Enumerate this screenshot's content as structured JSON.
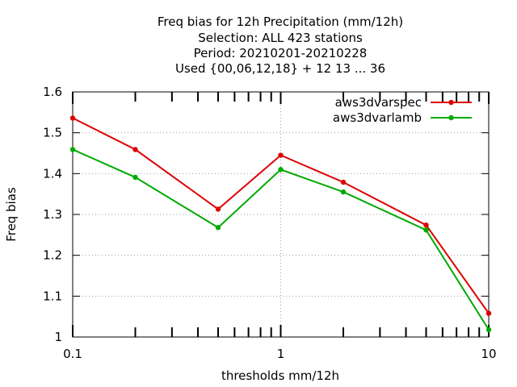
{
  "chart_data": {
    "type": "line",
    "title_lines": [
      "Freq bias  for 12h Precipitation (mm/12h)",
      "Selection: ALL    423 stations",
      "Period: 20210201-20210228",
      "Used {00,06,12,18} + 12 13 ... 36"
    ],
    "xlabel": "thresholds mm/12h",
    "ylabel": "Freq bias",
    "x_scale": "log",
    "xlim": [
      0.1,
      10
    ],
    "ylim": [
      1.0,
      1.6
    ],
    "x_ticks": [
      0.1,
      1,
      10
    ],
    "x_tick_labels": [
      "0.1",
      "1",
      "10"
    ],
    "y_ticks": [
      1.0,
      1.1,
      1.2,
      1.3,
      1.4,
      1.5,
      1.6
    ],
    "y_tick_labels": [
      "1",
      "1.1",
      "1.2",
      "1.3",
      "1.4",
      "1.5",
      "1.6"
    ],
    "grid": true,
    "legend_position": "top-right",
    "x": [
      0.1,
      0.2,
      0.5,
      1,
      2,
      5,
      10
    ],
    "series": [
      {
        "name": "aws3dvarspec",
        "color": "#dd0000",
        "values": [
          1.536,
          1.459,
          1.313,
          1.445,
          1.379,
          1.274,
          1.058
        ]
      },
      {
        "name": "aws3dvarlamb",
        "color": "#00aa00",
        "values": [
          1.459,
          1.391,
          1.268,
          1.41,
          1.355,
          1.262,
          1.018
        ]
      }
    ]
  }
}
